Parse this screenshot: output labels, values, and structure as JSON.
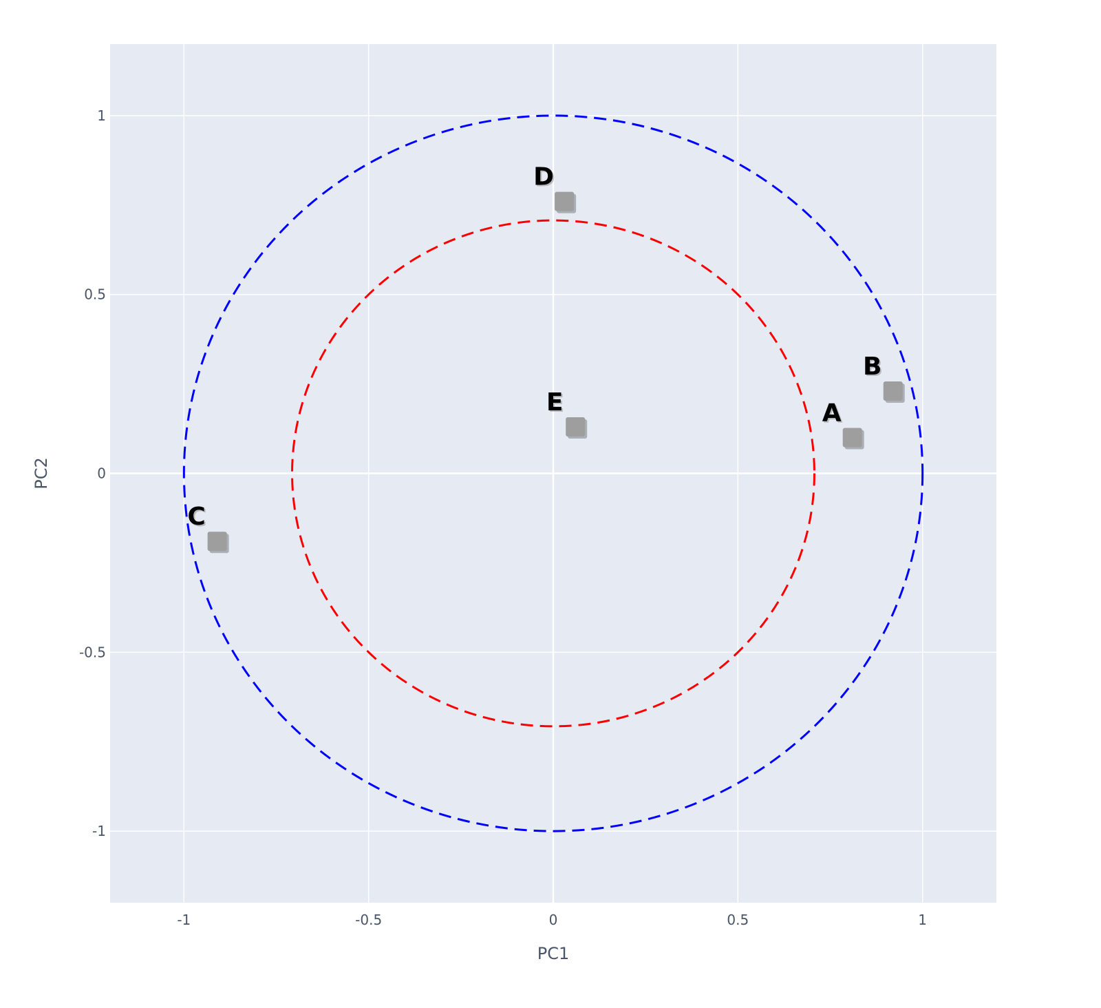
{
  "chart_data": {
    "type": "scatter",
    "title": "",
    "xlabel": "PC1",
    "ylabel": "PC2",
    "xlim": [
      -1.2,
      1.2
    ],
    "ylim": [
      -1.2,
      1.2
    ],
    "xticks": [
      -1,
      -0.5,
      0,
      0.5,
      1
    ],
    "yticks": [
      -1,
      -0.5,
      0,
      0.5,
      1
    ],
    "xtick_labels": [
      "-1",
      "-0.5",
      "0",
      "0.5",
      "1"
    ],
    "ytick_labels": [
      "-1",
      "-0.5",
      "0",
      "0.5",
      "1"
    ],
    "grid": true,
    "marker": "square",
    "background_color": "#e5eaf3",
    "grid_color": "#ffffff",
    "marker_color": "#9e9e9e",
    "points": [
      {
        "label": "A",
        "x": 0.81,
        "y": 0.1
      },
      {
        "label": "B",
        "x": 0.92,
        "y": 0.23
      },
      {
        "label": "C",
        "x": -0.91,
        "y": -0.19
      },
      {
        "label": "D",
        "x": 0.03,
        "y": 0.76
      },
      {
        "label": "E",
        "x": 0.06,
        "y": 0.13
      }
    ],
    "circles": [
      {
        "radius": 1.0,
        "color": "#0000ff",
        "style": "dashed"
      },
      {
        "radius": 0.7071,
        "color": "#ff0000",
        "style": "dashed"
      }
    ]
  }
}
